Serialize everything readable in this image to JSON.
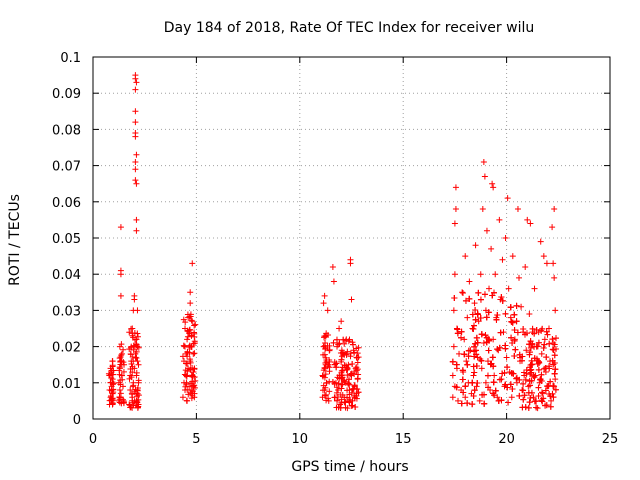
{
  "chart_data": {
    "type": "scatter",
    "title": "Day 184 of 2018, Rate Of TEC Index for receiver wilu",
    "xlabel": "GPS time / hours",
    "ylabel": "ROTI / TECUs",
    "xlim": [
      0,
      25
    ],
    "ylim": [
      0,
      0.1
    ],
    "xticks": [
      0,
      5,
      10,
      15,
      20,
      25
    ],
    "xtick_labels": [
      "0",
      "5",
      "10",
      "15",
      "20",
      "25"
    ],
    "yticks": [
      0,
      0.01,
      0.02,
      0.03,
      0.04,
      0.05,
      0.06,
      0.07,
      0.08,
      0.09,
      0.1
    ],
    "ytick_labels": [
      "0",
      "0.01",
      "0.02",
      "0.03",
      "0.04",
      "0.05",
      "0.06",
      "0.07",
      "0.08",
      "0.09",
      "0.1"
    ],
    "grid": true,
    "marker": "+",
    "color": "#ff0000",
    "series": [
      {
        "name": "ROTI",
        "points": [
          [
            0.8,
            0.004
          ],
          [
            0.8,
            0.008
          ],
          [
            0.8,
            0.012
          ],
          [
            0.85,
            0.006
          ],
          [
            0.85,
            0.01
          ],
          [
            0.85,
            0.014
          ],
          [
            0.9,
            0.005
          ],
          [
            0.9,
            0.009
          ],
          [
            0.9,
            0.013
          ],
          [
            0.95,
            0.007
          ],
          [
            0.95,
            0.011
          ],
          [
            0.95,
            0.016
          ],
          [
            1.25,
            0.005
          ],
          [
            1.25,
            0.01
          ],
          [
            1.3,
            0.008
          ],
          [
            1.3,
            0.014
          ],
          [
            1.3,
            0.02
          ],
          [
            1.35,
            0.006
          ],
          [
            1.35,
            0.034
          ],
          [
            1.35,
            0.04
          ],
          [
            1.35,
            0.041
          ],
          [
            1.35,
            0.053
          ],
          [
            1.4,
            0.012
          ],
          [
            1.4,
            0.018
          ],
          [
            1.45,
            0.009
          ],
          [
            1.5,
            0.015
          ],
          [
            1.75,
            0.004
          ],
          [
            1.8,
            0.008
          ],
          [
            1.8,
            0.012
          ],
          [
            1.85,
            0.016
          ],
          [
            1.85,
            0.02
          ],
          [
            1.9,
            0.006
          ],
          [
            1.9,
            0.025
          ],
          [
            1.95,
            0.01
          ],
          [
            1.95,
            0.03
          ],
          [
            2.0,
            0.014
          ],
          [
            2.0,
            0.033
          ],
          [
            2.0,
            0.034
          ],
          [
            2.05,
            0.018
          ],
          [
            2.05,
            0.066
          ],
          [
            2.05,
            0.069
          ],
          [
            2.05,
            0.071
          ],
          [
            2.05,
            0.078
          ],
          [
            2.05,
            0.079
          ],
          [
            2.05,
            0.082
          ],
          [
            2.05,
            0.085
          ],
          [
            2.05,
            0.091
          ],
          [
            2.05,
            0.094
          ],
          [
            2.05,
            0.095
          ],
          [
            2.1,
            0.005
          ],
          [
            2.1,
            0.012
          ],
          [
            2.1,
            0.022
          ],
          [
            2.1,
            0.052
          ],
          [
            2.1,
            0.055
          ],
          [
            2.1,
            0.065
          ],
          [
            2.1,
            0.073
          ],
          [
            2.1,
            0.093
          ],
          [
            2.15,
            0.008
          ],
          [
            2.15,
            0.016
          ],
          [
            2.15,
            0.02
          ],
          [
            2.15,
            0.03
          ],
          [
            2.2,
            0.004
          ],
          [
            2.2,
            0.01
          ],
          [
            2.2,
            0.015
          ],
          [
            4.35,
            0.006
          ],
          [
            4.4,
            0.01
          ],
          [
            4.4,
            0.016
          ],
          [
            4.45,
            0.008
          ],
          [
            4.45,
            0.02
          ],
          [
            4.45,
            0.025
          ],
          [
            4.5,
            0.012
          ],
          [
            4.5,
            0.018
          ],
          [
            4.55,
            0.005
          ],
          [
            4.55,
            0.022
          ],
          [
            4.6,
            0.028
          ],
          [
            4.6,
            0.014
          ],
          [
            4.65,
            0.009
          ],
          [
            4.65,
            0.024
          ],
          [
            4.7,
            0.016
          ],
          [
            4.7,
            0.032
          ],
          [
            4.7,
            0.035
          ],
          [
            4.75,
            0.007
          ],
          [
            4.75,
            0.02
          ],
          [
            4.8,
            0.043
          ],
          [
            4.8,
            0.012
          ],
          [
            4.8,
            0.027
          ],
          [
            4.85,
            0.009
          ],
          [
            4.85,
            0.018
          ],
          [
            4.9,
            0.006
          ],
          [
            4.9,
            0.014
          ],
          [
            11.1,
            0.006
          ],
          [
            11.1,
            0.012
          ],
          [
            11.15,
            0.02
          ],
          [
            11.15,
            0.032
          ],
          [
            11.2,
            0.008
          ],
          [
            11.2,
            0.034
          ],
          [
            11.25,
            0.015
          ],
          [
            11.25,
            0.023
          ],
          [
            11.3,
            0.01
          ],
          [
            11.35,
            0.03
          ],
          [
            11.4,
            0.005
          ],
          [
            11.6,
            0.042
          ],
          [
            11.65,
            0.038
          ],
          [
            11.7,
            0.006
          ],
          [
            11.7,
            0.015
          ],
          [
            11.75,
            0.01
          ],
          [
            11.8,
            0.02
          ],
          [
            11.85,
            0.008
          ],
          [
            11.9,
            0.025
          ],
          [
            11.95,
            0.004
          ],
          [
            12.0,
            0.012
          ],
          [
            12.0,
            0.027
          ],
          [
            12.1,
            0.018
          ],
          [
            12.15,
            0.006
          ],
          [
            12.2,
            0.01
          ],
          [
            12.25,
            0.022
          ],
          [
            12.3,
            0.003
          ],
          [
            12.35,
            0.015
          ],
          [
            12.4,
            0.008
          ],
          [
            12.45,
            0.043
          ],
          [
            12.45,
            0.044
          ],
          [
            12.5,
            0.012
          ],
          [
            12.5,
            0.033
          ],
          [
            12.55,
            0.005
          ],
          [
            12.6,
            0.019
          ],
          [
            12.65,
            0.009
          ],
          [
            12.7,
            0.014
          ],
          [
            12.75,
            0.007
          ],
          [
            12.8,
            0.011
          ],
          [
            17.4,
            0.006
          ],
          [
            17.4,
            0.012
          ],
          [
            17.45,
            0.02
          ],
          [
            17.45,
            0.03
          ],
          [
            17.5,
            0.009
          ],
          [
            17.5,
            0.04
          ],
          [
            17.5,
            0.054
          ],
          [
            17.55,
            0.058
          ],
          [
            17.55,
            0.064
          ],
          [
            17.6,
            0.014
          ],
          [
            17.6,
            0.025
          ],
          [
            17.65,
            0.005
          ],
          [
            17.7,
            0.018
          ],
          [
            17.8,
            0.008
          ],
          [
            17.85,
            0.035
          ],
          [
            17.9,
            0.013
          ],
          [
            17.95,
            0.022
          ],
          [
            18.0,
            0.045
          ],
          [
            18.0,
            0.006
          ],
          [
            18.05,
            0.016
          ],
          [
            18.1,
            0.028
          ],
          [
            18.15,
            0.01
          ],
          [
            18.2,
            0.038
          ],
          [
            18.25,
            0.019
          ],
          [
            18.3,
            0.007
          ],
          [
            18.35,
            0.025
          ],
          [
            18.4,
            0.012
          ],
          [
            18.45,
            0.032
          ],
          [
            18.5,
            0.048
          ],
          [
            18.55,
            0.009
          ],
          [
            18.6,
            0.017
          ],
          [
            18.65,
            0.027
          ],
          [
            18.7,
            0.005
          ],
          [
            18.75,
            0.04
          ],
          [
            18.8,
            0.014
          ],
          [
            18.85,
            0.058
          ],
          [
            18.9,
            0.071
          ],
          [
            18.9,
            0.021
          ],
          [
            18.95,
            0.067
          ],
          [
            19.0,
            0.01
          ],
          [
            19.0,
            0.03
          ],
          [
            19.05,
            0.052
          ],
          [
            19.1,
            0.016
          ],
          [
            19.15,
            0.036
          ],
          [
            19.2,
            0.008
          ],
          [
            19.25,
            0.047
          ],
          [
            19.3,
            0.065
          ],
          [
            19.35,
            0.064
          ],
          [
            19.35,
            0.022
          ],
          [
            19.4,
            0.012
          ],
          [
            19.45,
            0.04
          ],
          [
            19.5,
            0.028
          ],
          [
            19.55,
            0.006
          ],
          [
            19.6,
            0.019
          ],
          [
            19.65,
            0.055
          ],
          [
            19.7,
            0.033
          ],
          [
            19.75,
            0.011
          ],
          [
            19.8,
            0.044
          ],
          [
            19.85,
            0.024
          ],
          [
            19.9,
            0.009
          ],
          [
            19.95,
            0.05
          ],
          [
            20.0,
            0.017
          ],
          [
            20.05,
            0.061
          ],
          [
            20.1,
            0.036
          ],
          [
            20.15,
            0.013
          ],
          [
            20.2,
            0.028
          ],
          [
            20.25,
            0.006
          ],
          [
            20.3,
            0.045
          ],
          [
            20.4,
            0.022
          ],
          [
            20.5,
            0.01
          ],
          [
            20.55,
            0.058
          ],
          [
            20.6,
            0.039
          ],
          [
            20.65,
            0.016
          ],
          [
            20.7,
            0.031
          ],
          [
            20.75,
            0.008
          ],
          [
            20.8,
            0.024
          ],
          [
            20.85,
            0.012
          ],
          [
            20.9,
            0.042
          ],
          [
            20.95,
            0.019
          ],
          [
            21.0,
            0.055
          ],
          [
            21.05,
            0.009
          ],
          [
            21.1,
            0.029
          ],
          [
            21.15,
            0.054
          ],
          [
            21.2,
            0.015
          ],
          [
            21.25,
            0.024
          ],
          [
            21.3,
            0.006
          ],
          [
            21.35,
            0.036
          ],
          [
            21.4,
            0.012
          ],
          [
            21.45,
            0.02
          ],
          [
            21.5,
            0.003
          ],
          [
            21.55,
            0.024
          ],
          [
            21.6,
            0.01
          ],
          [
            21.65,
            0.049
          ],
          [
            21.7,
            0.018
          ],
          [
            21.75,
            0.007
          ],
          [
            21.8,
            0.045
          ],
          [
            21.85,
            0.022
          ],
          [
            21.9,
            0.013
          ],
          [
            21.95,
            0.043
          ],
          [
            22.0,
            0.009
          ],
          [
            22.05,
            0.025
          ],
          [
            22.1,
            0.016
          ],
          [
            22.15,
            0.005
          ],
          [
            22.2,
            0.053
          ],
          [
            22.25,
            0.043
          ],
          [
            22.25,
            0.021
          ],
          [
            22.3,
            0.058
          ],
          [
            22.3,
            0.039
          ],
          [
            22.35,
            0.011
          ],
          [
            22.35,
            0.03
          ]
        ],
        "dense_bands": [
          {
            "x_from": 0.75,
            "x_to": 1.0,
            "y_min": 0.004,
            "y_max": 0.016
          },
          {
            "x_from": 1.25,
            "x_to": 1.5,
            "y_min": 0.004,
            "y_max": 0.021
          },
          {
            "x_from": 1.75,
            "x_to": 2.25,
            "y_min": 0.003,
            "y_max": 0.025
          },
          {
            "x_from": 4.35,
            "x_to": 4.95,
            "y_min": 0.005,
            "y_max": 0.029
          },
          {
            "x_from": 11.1,
            "x_to": 11.45,
            "y_min": 0.005,
            "y_max": 0.024
          },
          {
            "x_from": 11.6,
            "x_to": 12.85,
            "y_min": 0.003,
            "y_max": 0.022
          },
          {
            "x_from": 17.4,
            "x_to": 20.5,
            "y_min": 0.004,
            "y_max": 0.035
          },
          {
            "x_from": 20.5,
            "x_to": 22.4,
            "y_min": 0.003,
            "y_max": 0.025
          }
        ]
      }
    ]
  }
}
